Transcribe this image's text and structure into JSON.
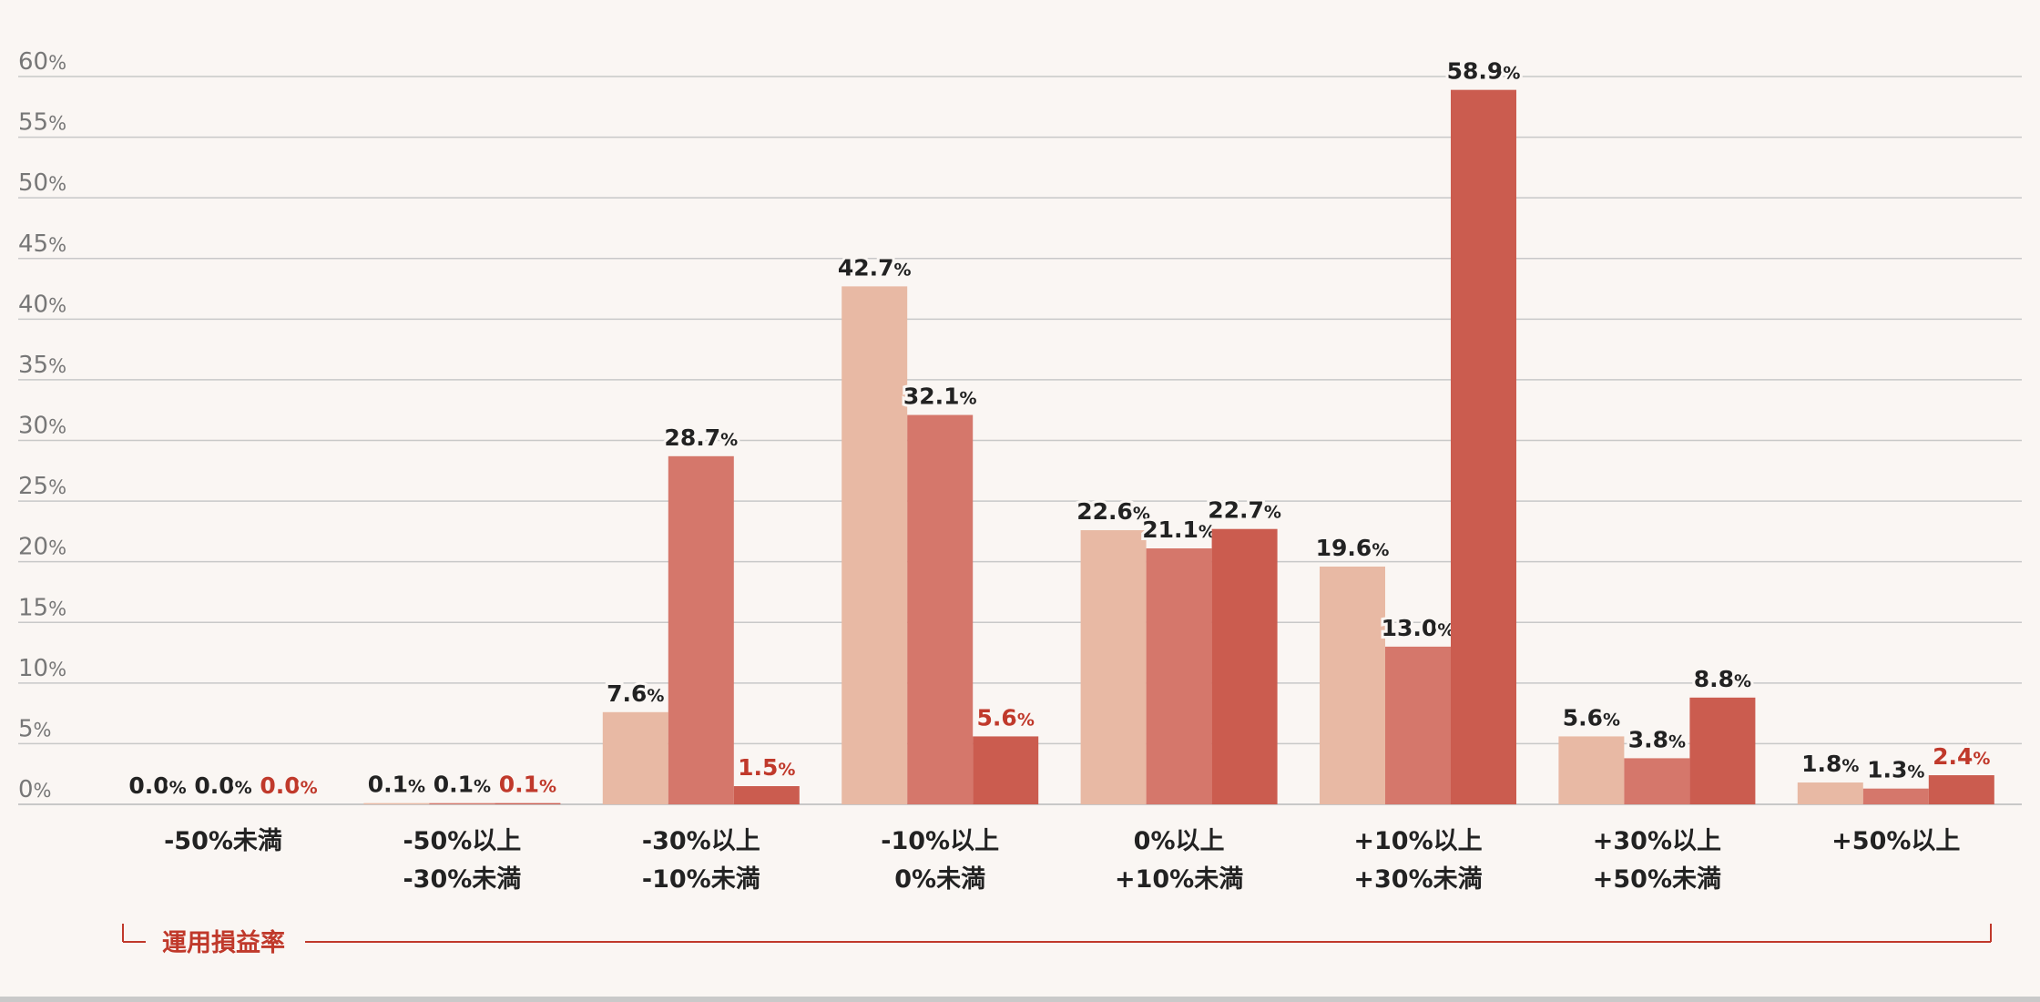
{
  "chart_data": {
    "type": "bar",
    "title": "",
    "xlabel": "運用損益率",
    "ylabel": "",
    "ylim": [
      0,
      60
    ],
    "y_ticks": [
      0,
      5,
      10,
      15,
      20,
      25,
      30,
      35,
      40,
      45,
      50,
      55,
      60
    ],
    "y_tick_suffix": "%",
    "grid": true,
    "legend": "none",
    "categories": [
      [
        "-50%未満"
      ],
      [
        "-50%以上",
        "-30%未満"
      ],
      [
        "-30%以上",
        "-10%未満"
      ],
      [
        "-10%以上",
        "0%未満"
      ],
      [
        "0%以上",
        "+10%未満"
      ],
      [
        "+10%以上",
        "+30%未満"
      ],
      [
        "+30%以上",
        "+50%未満"
      ],
      [
        "+50%以上"
      ]
    ],
    "series": [
      {
        "values": [
          0.0,
          0.1,
          7.6,
          42.7,
          22.6,
          19.6,
          5.6,
          1.8
        ],
        "color": "#e8b9a4"
      },
      {
        "values": [
          0.0,
          0.1,
          28.7,
          32.1,
          21.1,
          13.0,
          3.8,
          1.3
        ],
        "color": "#d5776b"
      },
      {
        "values": [
          0.0,
          0.1,
          1.5,
          5.6,
          22.7,
          58.9,
          8.8,
          2.4
        ],
        "color": "#cb5c4f"
      }
    ],
    "colors": {
      "label_dark": "#222222",
      "label_accent": "#c0392b",
      "axis_label": "#c0392b",
      "grid": "#c8c8c8",
      "tick": "#777777",
      "bracket": "#c0392b"
    }
  }
}
